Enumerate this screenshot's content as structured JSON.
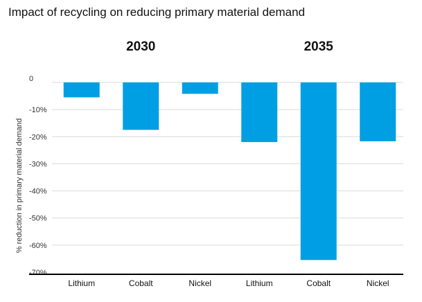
{
  "chart_data": {
    "type": "bar",
    "title": "Impact of recycling on reducing primary material demand",
    "ylabel": "% reduction in primary material demand",
    "ylim": [
      -70,
      0
    ],
    "y_ticks": [
      0,
      -10,
      -20,
      -30,
      -40,
      -50,
      -60,
      -70
    ],
    "y_tick_labels": [
      "0",
      "-10%",
      "-20%",
      "-30%",
      "-40%",
      "-50%",
      "-60%",
      "-70%"
    ],
    "groups": [
      {
        "label": "2030",
        "categories": [
          "Lithium",
          "Cobalt",
          "Nickel"
        ],
        "values": [
          -5.5,
          -17.5,
          -4.2
        ]
      },
      {
        "label": "2035",
        "categories": [
          "Lithium",
          "Cobalt",
          "Nickel"
        ],
        "values": [
          -22,
          -65.5,
          -21.7
        ]
      }
    ],
    "grid": true,
    "colors": {
      "bar": "#009fe3",
      "grid": "#d9d9d9",
      "axis": "#000000",
      "text": "#111111"
    }
  }
}
